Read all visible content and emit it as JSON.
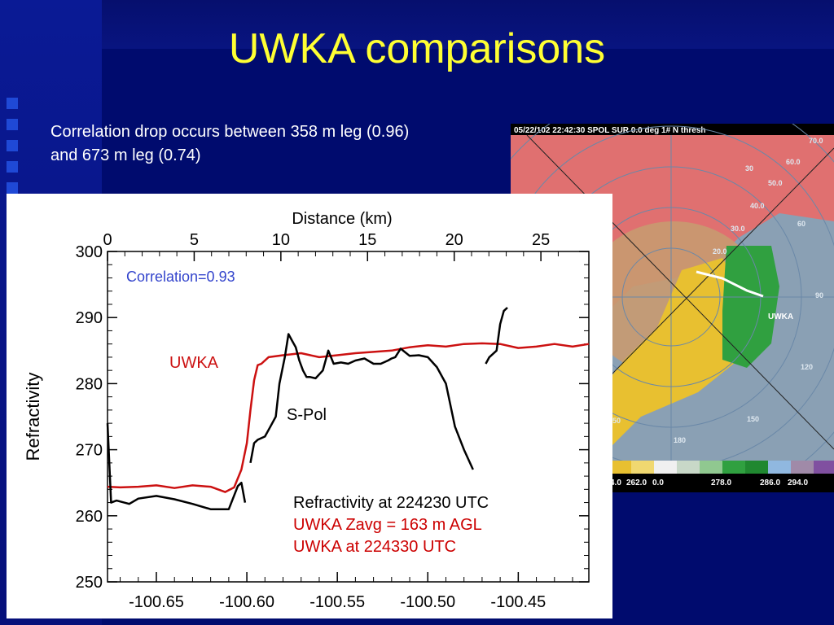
{
  "slide": {
    "title": "UWKA comparisons",
    "subtitle": "Correlation drop occurs between 358 m leg (0.96) and 673 m leg (0.74)"
  },
  "radar": {
    "header": "05/22/102 22:42:30  SPOL    SUR    0.0 deg   1#  N  thresh",
    "aircraft_label": "UWKA",
    "range_labels": [
      "70.0",
      "60.0",
      "50.0",
      "40.0",
      "30",
      "30.0",
      "20.0",
      "60",
      "90",
      "120",
      "150",
      "180",
      "150"
    ],
    "colorbar_labels": [
      "4.0",
      "262.0",
      "0.0",
      "278.0",
      "286.0",
      "294.0"
    ],
    "colors": {
      "dry": "#e07070",
      "mid": "#d89a55",
      "warm": "#e8c030",
      "wet": "#30a040"
    }
  },
  "chart_data": {
    "type": "line",
    "top_axis_label": "Distance (km)",
    "top_ticks": [
      0,
      5,
      10,
      15,
      20,
      25
    ],
    "ylabel": "Refractivity",
    "yticks": [
      250,
      260,
      270,
      280,
      290,
      300
    ],
    "ylim": [
      250,
      300
    ],
    "xlim": [
      -100.677,
      -100.411
    ],
    "xticks": [
      -100.65,
      -100.6,
      -100.55,
      -100.5,
      -100.45
    ],
    "xtick_labels": [
      "-100.65",
      "-100.60",
      "-100.55",
      "-100.50",
      "-100.45"
    ],
    "annotations": {
      "correlation": "Correlation=0.93",
      "legend_lines": [
        {
          "text": "Refractivity at 224230 UTC",
          "color": "#000000"
        },
        {
          "text": "UWKA Zavg = 163 m AGL",
          "color": "#cc0000"
        },
        {
          "text": "UWKA at 224330 UTC",
          "color": "#cc0000"
        }
      ]
    },
    "series": [
      {
        "name": "UWKA",
        "color": "#cc1111",
        "x": [
          -100.677,
          -100.67,
          -100.66,
          -100.65,
          -100.64,
          -100.63,
          -100.62,
          -100.612,
          -100.607,
          -100.603,
          -100.6,
          -100.598,
          -100.596,
          -100.594,
          -100.592,
          -100.588,
          -100.58,
          -100.57,
          -100.56,
          -100.55,
          -100.54,
          -100.53,
          -100.52,
          -100.51,
          -100.5,
          -100.49,
          -100.48,
          -100.47,
          -100.46,
          -100.45,
          -100.44,
          -100.43,
          -100.42,
          -100.411
        ],
        "y": [
          264.4,
          264.3,
          264.4,
          264.6,
          264.2,
          264.6,
          264.4,
          263.6,
          264.3,
          267.0,
          271.0,
          276.0,
          280.5,
          282.8,
          283.0,
          284.0,
          284.3,
          284.6,
          284.0,
          284.3,
          284.6,
          284.8,
          285.0,
          285.5,
          285.8,
          285.6,
          286.0,
          286.1,
          286.0,
          285.4,
          285.6,
          286.0,
          285.6,
          286.0
        ]
      },
      {
        "name": "S-Pol",
        "color": "#000000",
        "x": [
          -100.677,
          -100.675,
          -100.672,
          -100.665,
          -100.66,
          -100.65,
          -100.64,
          -100.63,
          -100.62,
          -100.61,
          -100.605,
          -100.603,
          -100.601,
          -100.6,
          -100.598,
          -100.596,
          -100.594,
          -100.59,
          -100.587,
          -100.584,
          -100.582,
          -100.579,
          -100.577,
          -100.575,
          -100.573,
          -100.571,
          -100.569,
          -100.567,
          -100.565,
          -100.562,
          -100.558,
          -100.555,
          -100.552,
          -100.548,
          -100.544,
          -100.54,
          -100.535,
          -100.53,
          -100.526,
          -100.522,
          -100.52,
          -100.518,
          -100.515,
          -100.51,
          -100.505,
          -100.5,
          -100.495,
          -100.49,
          -100.485,
          -100.48,
          -100.475,
          -100.47,
          -100.468,
          -100.466,
          -100.464,
          -100.462,
          -100.46,
          -100.458,
          -100.456,
          -100.454,
          -100.452
        ],
        "y": [
          274.0,
          262.0,
          262.3,
          261.8,
          262.6,
          263.0,
          262.5,
          261.8,
          261.0,
          261.0,
          264.5,
          265.0,
          262.0,
          null,
          268.0,
          271.0,
          271.5,
          272.0,
          273.5,
          275.0,
          280.0,
          284.0,
          287.5,
          286.5,
          285.5,
          283.5,
          282.0,
          281.0,
          281.0,
          280.8,
          282.0,
          285.0,
          283.0,
          283.2,
          283.0,
          283.5,
          283.8,
          283.0,
          283.0,
          283.5,
          283.8,
          284.0,
          285.3,
          284.2,
          284.3,
          284.0,
          282.5,
          280.0,
          273.5,
          270.0,
          267.0,
          null,
          283.0,
          284.0,
          284.5,
          285.0,
          289.0,
          291.0,
          291.5,
          null,
          null
        ]
      }
    ]
  }
}
